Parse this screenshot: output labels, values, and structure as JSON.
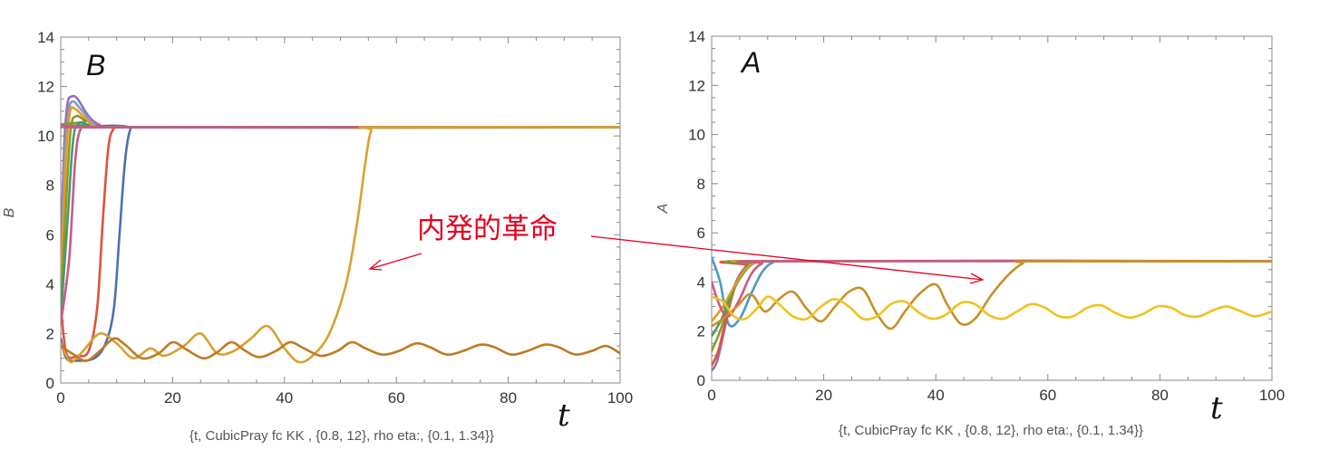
{
  "chart_data": [
    {
      "type": "line",
      "panel_label": "B",
      "ylabel": "B",
      "xlabel": "t",
      "caption": "{t, CubicPray fc KK , {0.8, 12},  rho eta:, {0.1, 1.34}}",
      "xlim": [
        0,
        100
      ],
      "ylim": [
        0,
        14
      ],
      "xticks": [
        0,
        20,
        40,
        60,
        80,
        100
      ],
      "yticks": [
        0,
        2,
        4,
        6,
        8,
        10,
        12,
        14
      ],
      "grid": false,
      "series": [
        {
          "color": "#4f6fb0",
          "points": [
            [
              0,
              1.8
            ],
            [
              1,
              1.0
            ],
            [
              3,
              0.9
            ],
            [
              6,
              1.0
            ],
            [
              8,
              1.6
            ],
            [
              9.5,
              3.0
            ],
            [
              10.5,
              6.0
            ],
            [
              11.5,
              9.0
            ],
            [
              12.5,
              10.3
            ],
            [
              14,
              10.35
            ],
            [
              100,
              10.35
            ]
          ]
        },
        {
          "color": "#e0533a",
          "points": [
            [
              0,
              3.2
            ],
            [
              1,
              1.2
            ],
            [
              3,
              1.1
            ],
            [
              5,
              1.3
            ],
            [
              6.5,
              3.0
            ],
            [
              7.5,
              6.5
            ],
            [
              8.5,
              9.5
            ],
            [
              9.5,
              10.3
            ],
            [
              11,
              10.35
            ],
            [
              100,
              10.35
            ]
          ]
        },
        {
          "color": "#9b6db0",
          "points": [
            [
              0,
              5.0
            ],
            [
              0.6,
              9.5
            ],
            [
              1.2,
              11.3
            ],
            [
              2,
              11.6
            ],
            [
              3,
              11.5
            ],
            [
              5,
              10.8
            ],
            [
              7,
              10.45
            ],
            [
              10,
              10.35
            ],
            [
              100,
              10.35
            ]
          ]
        },
        {
          "color": "#7a9bd0",
          "points": [
            [
              0,
              4.0
            ],
            [
              0.7,
              9.0
            ],
            [
              1.4,
              11.0
            ],
            [
              2.2,
              11.4
            ],
            [
              3.5,
              11.1
            ],
            [
              6,
              10.5
            ],
            [
              9,
              10.35
            ],
            [
              100,
              10.35
            ]
          ]
        },
        {
          "color": "#e59a1f",
          "points": [
            [
              0,
              3.5
            ],
            [
              0.8,
              8.5
            ],
            [
              1.6,
              10.9
            ],
            [
              2.5,
              11.1
            ],
            [
              4,
              10.8
            ],
            [
              6,
              10.4
            ],
            [
              9,
              10.35
            ],
            [
              100,
              10.35
            ]
          ]
        },
        {
          "color": "#8a9a2a",
          "points": [
            [
              0,
              3.0
            ],
            [
              1,
              7.5
            ],
            [
              1.8,
              10.3
            ],
            [
              2.8,
              10.8
            ],
            [
              4.5,
              10.6
            ],
            [
              7,
              10.35
            ],
            [
              100,
              10.35
            ]
          ]
        },
        {
          "color": "#4a9a6a",
          "points": [
            [
              0,
              2.6
            ],
            [
              1.2,
              6.5
            ],
            [
              2.2,
              9.8
            ],
            [
              3.2,
              10.5
            ],
            [
              5,
              10.45
            ],
            [
              8,
              10.35
            ],
            [
              100,
              10.35
            ]
          ]
        },
        {
          "color": "#c85a8a",
          "points": [
            [
              0,
              2.4
            ],
            [
              1.5,
              5.0
            ],
            [
              2.6,
              9.0
            ],
            [
              3.6,
              10.3
            ],
            [
              5.5,
              10.35
            ],
            [
              100,
              10.35
            ]
          ]
        },
        {
          "color": "#d9a030",
          "points": [
            [
              0,
              1.6
            ],
            [
              1,
              1.1
            ],
            [
              2,
              0.85
            ],
            [
              4,
              1.3
            ],
            [
              7,
              2.0
            ],
            [
              10,
              1.6
            ],
            [
              13,
              1.0
            ],
            [
              16,
              1.4
            ],
            [
              18.5,
              1.1
            ],
            [
              22,
              1.5
            ],
            [
              25,
              2.0
            ],
            [
              28,
              1.2
            ],
            [
              31,
              1.3
            ],
            [
              34,
              1.8
            ],
            [
              37,
              2.3
            ],
            [
              40,
              1.4
            ],
            [
              42.5,
              0.85
            ],
            [
              45,
              1.1
            ],
            [
              48,
              2.0
            ],
            [
              51,
              4.0
            ],
            [
              53,
              6.5
            ],
            [
              54.5,
              9.0
            ],
            [
              55.5,
              10.2
            ],
            [
              57,
              10.35
            ],
            [
              100,
              10.35
            ]
          ]
        },
        {
          "color": "#c07a22",
          "points": [
            [
              0,
              1.5
            ],
            [
              2,
              1.2
            ],
            [
              4.5,
              0.9
            ],
            [
              7,
              1.3
            ],
            [
              9.5,
              1.8
            ],
            [
              11.5,
              1.55
            ],
            [
              14.5,
              1.0
            ],
            [
              17.5,
              1.2
            ],
            [
              20,
              1.65
            ],
            [
              22.5,
              1.35
            ],
            [
              25.5,
              1.0
            ],
            [
              28,
              1.25
            ],
            [
              30.5,
              1.65
            ],
            [
              33,
              1.3
            ],
            [
              35.5,
              1.05
            ],
            [
              38.5,
              1.3
            ],
            [
              41,
              1.65
            ],
            [
              43.5,
              1.4
            ],
            [
              46.5,
              1.1
            ],
            [
              49.5,
              1.3
            ],
            [
              52,
              1.65
            ],
            [
              54.5,
              1.4
            ],
            [
              57.5,
              1.15
            ],
            [
              60.5,
              1.3
            ],
            [
              63.5,
              1.6
            ],
            [
              66,
              1.45
            ],
            [
              69,
              1.15
            ],
            [
              72,
              1.3
            ],
            [
              75,
              1.55
            ],
            [
              77.5,
              1.45
            ],
            [
              80.5,
              1.15
            ],
            [
              83.5,
              1.3
            ],
            [
              86.5,
              1.55
            ],
            [
              89,
              1.45
            ],
            [
              92,
              1.15
            ],
            [
              95,
              1.3
            ],
            [
              97.5,
              1.5
            ],
            [
              100,
              1.2
            ]
          ]
        }
      ]
    },
    {
      "type": "line",
      "panel_label": "A",
      "ylabel": "A",
      "xlabel": "t",
      "caption": "{t, CubicPray fc KK , {0.8, 12},  rho eta:, {0.1, 1.34}}",
      "xlim": [
        0,
        100
      ],
      "ylim": [
        0,
        14
      ],
      "xticks": [
        0,
        20,
        40,
        60,
        80,
        100
      ],
      "yticks": [
        0,
        2,
        4,
        6,
        8,
        10,
        12,
        14
      ],
      "grid": false,
      "series": [
        {
          "color": "#4a9ac8",
          "points": [
            [
              0,
              5.0
            ],
            [
              1.5,
              4.0
            ],
            [
              3,
              2.3
            ],
            [
              5,
              2.5
            ],
            [
              7,
              3.5
            ],
            [
              9,
              4.4
            ],
            [
              11,
              4.8
            ],
            [
              14,
              4.85
            ],
            [
              100,
              4.85
            ]
          ]
        },
        {
          "color": "#9b6db0",
          "points": [
            [
              0,
              0.4
            ],
            [
              1,
              0.8
            ],
            [
              2.5,
              2.3
            ],
            [
              4,
              3.8
            ],
            [
              6,
              4.6
            ],
            [
              8,
              4.8
            ],
            [
              11,
              4.85
            ],
            [
              100,
              4.85
            ]
          ]
        },
        {
          "color": "#e0533a",
          "points": [
            [
              0,
              0.6
            ],
            [
              1.2,
              1.2
            ],
            [
              2.8,
              2.7
            ],
            [
              4.5,
              4.0
            ],
            [
              6.5,
              4.65
            ],
            [
              9,
              4.85
            ],
            [
              100,
              4.85
            ]
          ]
        },
        {
          "color": "#8a9a2a",
          "points": [
            [
              0,
              1.2
            ],
            [
              1.5,
              2.0
            ],
            [
              3.2,
              3.2
            ],
            [
              5,
              4.2
            ],
            [
              7,
              4.7
            ],
            [
              10,
              4.85
            ],
            [
              100,
              4.85
            ]
          ]
        },
        {
          "color": "#4a9a6a",
          "points": [
            [
              0,
              1.8
            ],
            [
              1.8,
              2.5
            ],
            [
              3.5,
              3.5
            ],
            [
              5.5,
              4.3
            ],
            [
              7.5,
              4.75
            ],
            [
              10.5,
              4.85
            ],
            [
              100,
              4.85
            ]
          ]
        },
        {
          "color": "#e59a1f",
          "points": [
            [
              0,
              2.4
            ],
            [
              2,
              3.0
            ],
            [
              4,
              3.8
            ],
            [
              6,
              4.5
            ],
            [
              8,
              4.8
            ],
            [
              11,
              4.85
            ],
            [
              100,
              4.85
            ]
          ]
        },
        {
          "color": "#c85a8a",
          "points": [
            [
              0,
              4.0
            ],
            [
              1.5,
              3.0
            ],
            [
              3,
              2.6
            ],
            [
              5,
              3.3
            ],
            [
              7,
              4.3
            ],
            [
              9,
              4.75
            ],
            [
              12,
              4.85
            ],
            [
              100,
              4.85
            ]
          ]
        },
        {
          "color": "#c8902a",
          "points": [
            [
              0,
              2.2
            ],
            [
              2,
              2.5
            ],
            [
              4.5,
              3.0
            ],
            [
              7,
              3.5
            ],
            [
              9.5,
              2.8
            ],
            [
              12,
              3.3
            ],
            [
              14.5,
              3.6
            ],
            [
              17,
              2.9
            ],
            [
              19.5,
              2.4
            ],
            [
              22,
              3.0
            ],
            [
              24.5,
              3.6
            ],
            [
              27,
              3.7
            ],
            [
              29.5,
              2.7
            ],
            [
              32,
              2.1
            ],
            [
              34.5,
              2.8
            ],
            [
              37,
              3.5
            ],
            [
              40,
              3.9
            ],
            [
              42,
              3.1
            ],
            [
              44.5,
              2.3
            ],
            [
              47,
              2.5
            ],
            [
              50,
              3.5
            ],
            [
              53,
              4.3
            ],
            [
              55.5,
              4.75
            ],
            [
              58,
              4.85
            ],
            [
              100,
              4.85
            ]
          ]
        },
        {
          "color": "#efc21f",
          "points": [
            [
              0,
              3.4
            ],
            [
              2,
              3.2
            ],
            [
              4,
              2.6
            ],
            [
              6,
              2.5
            ],
            [
              8,
              2.9
            ],
            [
              10,
              3.4
            ],
            [
              12,
              3.1
            ],
            [
              14.5,
              2.6
            ],
            [
              17,
              2.5
            ],
            [
              19.5,
              3.0
            ],
            [
              22,
              3.3
            ],
            [
              24.5,
              3.0
            ],
            [
              27,
              2.5
            ],
            [
              29.5,
              2.6
            ],
            [
              32,
              3.1
            ],
            [
              34.5,
              3.2
            ],
            [
              37,
              2.75
            ],
            [
              39.5,
              2.5
            ],
            [
              42,
              2.7
            ],
            [
              44.5,
              3.15
            ],
            [
              47,
              3.1
            ],
            [
              49.5,
              2.65
            ],
            [
              52,
              2.5
            ],
            [
              54.5,
              2.8
            ],
            [
              57,
              3.1
            ],
            [
              59.5,
              2.95
            ],
            [
              62,
              2.6
            ],
            [
              64.5,
              2.6
            ],
            [
              67,
              2.95
            ],
            [
              69.5,
              3.05
            ],
            [
              72,
              2.75
            ],
            [
              74.5,
              2.55
            ],
            [
              77,
              2.7
            ],
            [
              79.5,
              3.0
            ],
            [
              82,
              2.95
            ],
            [
              84.5,
              2.65
            ],
            [
              87,
              2.6
            ],
            [
              89.5,
              2.85
            ],
            [
              92,
              3.0
            ],
            [
              94.5,
              2.8
            ],
            [
              97,
              2.6
            ],
            [
              100,
              2.8
            ]
          ]
        }
      ]
    }
  ],
  "annotation": {
    "text": "内発的革命",
    "color": "#e5001e"
  }
}
